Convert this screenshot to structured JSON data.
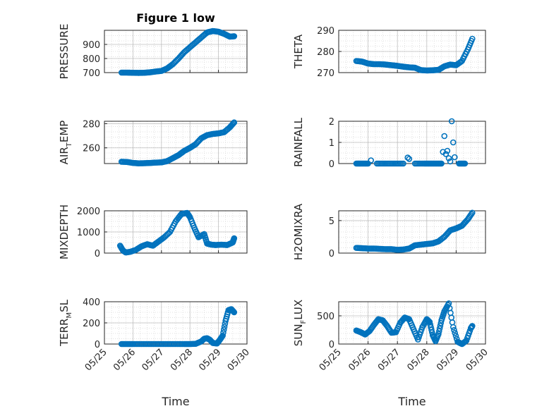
{
  "figure_title": "Figure 1 low",
  "colors": {
    "marker": "#0072BD",
    "axis": "#262626",
    "grid": "#b0b0b0",
    "background": "#ffffff"
  },
  "chart_data": [
    {
      "type": "scatter",
      "panel": "pressure",
      "title": "Figure 1 low",
      "ylabel": "PRESSURE",
      "xlabel": "",
      "ylim": [
        700,
        1000
      ],
      "yticks": [
        "700",
        "800",
        "900"
      ],
      "xlim": [
        "05/25",
        "05/30"
      ],
      "xtick_labels": [],
      "grid": true,
      "marker": "open-circle",
      "x": [
        25.6,
        25.8,
        26.0,
        26.2,
        26.4,
        26.6,
        26.8,
        27.0,
        27.2,
        27.4,
        27.6,
        27.8,
        28.0,
        28.2,
        28.4,
        28.6,
        28.8,
        29.0,
        29.2,
        29.4,
        29.55
      ],
      "y": [
        700,
        700,
        699,
        698,
        699,
        702,
        708,
        712,
        730,
        760,
        800,
        845,
        880,
        915,
        950,
        985,
        995,
        990,
        975,
        955,
        958
      ]
    },
    {
      "type": "scatter",
      "panel": "theta",
      "ylabel": "THETA",
      "xlabel": "",
      "ylim": [
        270,
        290
      ],
      "yticks": [
        "270",
        "280",
        "290"
      ],
      "xlim": [
        "05/25",
        "05/30"
      ],
      "xtick_labels": [],
      "grid": true,
      "marker": "open-circle",
      "x": [
        25.6,
        25.8,
        26.0,
        26.2,
        26.4,
        26.6,
        26.8,
        27.0,
        27.2,
        27.4,
        27.6,
        27.8,
        28.0,
        28.2,
        28.4,
        28.6,
        28.8,
        29.0,
        29.2,
        29.4,
        29.55
      ],
      "y": [
        275.5,
        275.2,
        274.3,
        274.0,
        274.0,
        273.8,
        273.5,
        273.2,
        272.8,
        272.5,
        272.3,
        271.2,
        271.0,
        271.1,
        271.3,
        273.0,
        273.8,
        273.5,
        275.5,
        281.0,
        286.0
      ]
    },
    {
      "type": "scatter",
      "panel": "air-temp",
      "ylabel": "AIR_TEMP",
      "ylabel_main": "AIR",
      "ylabel_sub": "T",
      "ylabel_tail": "EMP",
      "xlabel": "",
      "ylim": [
        247,
        282
      ],
      "yticks": [
        "260",
        "280"
      ],
      "xlim": [
        "05/25",
        "05/30"
      ],
      "xtick_labels": [],
      "grid": true,
      "marker": "open-circle",
      "x": [
        25.6,
        25.8,
        26.0,
        26.2,
        26.4,
        26.6,
        26.8,
        27.0,
        27.2,
        27.4,
        27.6,
        27.8,
        28.0,
        28.2,
        28.4,
        28.6,
        28.8,
        29.0,
        29.2,
        29.4,
        29.55
      ],
      "y": [
        248.5,
        248.3,
        247.5,
        247.2,
        247.3,
        247.5,
        247.8,
        248.0,
        249.0,
        251.5,
        254.0,
        257.5,
        260.0,
        263.0,
        268.0,
        270.5,
        271.5,
        272.0,
        273.0,
        277.0,
        281.0
      ]
    },
    {
      "type": "scatter",
      "panel": "rainfall",
      "ylabel": "RAINFALL",
      "xlabel": "",
      "ylim": [
        0,
        2
      ],
      "yticks": [
        "0",
        "1",
        "2"
      ],
      "xlim": [
        "05/25",
        "05/30"
      ],
      "xtick_labels": [],
      "grid": true,
      "marker": "open-circle",
      "x": [
        25.6,
        25.8,
        26.0,
        26.1,
        26.3,
        26.6,
        26.9,
        27.2,
        27.35,
        27.4,
        27.6,
        27.9,
        28.1,
        28.3,
        28.5,
        28.55,
        28.6,
        28.65,
        28.7,
        28.75,
        28.8,
        28.85,
        28.9,
        28.95,
        29.1,
        29.3
      ],
      "y": [
        0,
        0,
        0,
        0.15,
        0,
        0,
        0,
        0,
        0.28,
        0.22,
        0,
        0,
        0,
        0,
        0,
        0.55,
        1.3,
        0.45,
        0.6,
        0.25,
        0.1,
        2.0,
        1.0,
        0.3,
        0,
        0
      ]
    },
    {
      "type": "scatter",
      "panel": "mixdepth",
      "ylabel": "MIXDEPTH",
      "xlabel": "",
      "ylim": [
        0,
        2000
      ],
      "yticks": [
        "0",
        "1000",
        "2000"
      ],
      "xlim": [
        "05/25",
        "05/30"
      ],
      "xtick_labels": [],
      "grid": true,
      "marker": "open-circle",
      "x": [
        25.55,
        25.65,
        25.75,
        25.9,
        26.1,
        26.3,
        26.5,
        26.7,
        26.9,
        27.1,
        27.3,
        27.5,
        27.7,
        27.9,
        28.0,
        28.15,
        28.3,
        28.5,
        28.6,
        28.75,
        28.9,
        29.1,
        29.3,
        29.5,
        29.55
      ],
      "y": [
        350,
        120,
        30,
        60,
        150,
        320,
        420,
        350,
        550,
        750,
        1000,
        1500,
        1850,
        1900,
        1700,
        1200,
        750,
        900,
        450,
        400,
        380,
        400,
        380,
        500,
        700
      ]
    },
    {
      "type": "scatter",
      "panel": "h2o-mixing-ratio",
      "ylabel": "H2OMIXRA",
      "xlabel": "",
      "ylim": [
        0,
        6.5
      ],
      "yticks": [
        "0",
        "5"
      ],
      "xlim": [
        "05/25",
        "05/30"
      ],
      "xtick_labels": [],
      "grid": true,
      "marker": "open-circle",
      "x": [
        25.6,
        25.8,
        26.0,
        26.2,
        26.4,
        26.6,
        26.8,
        27.0,
        27.2,
        27.4,
        27.6,
        27.8,
        28.0,
        28.2,
        28.4,
        28.6,
        28.8,
        29.0,
        29.2,
        29.4,
        29.55
      ],
      "y": [
        0.8,
        0.75,
        0.7,
        0.7,
        0.65,
        0.6,
        0.6,
        0.5,
        0.55,
        0.7,
        1.2,
        1.3,
        1.4,
        1.5,
        1.8,
        2.5,
        3.5,
        3.8,
        4.2,
        5.2,
        6.2
      ]
    },
    {
      "type": "scatter",
      "panel": "terrain-msl",
      "ylabel": "TERR_MSL",
      "ylabel_main": "TERR",
      "ylabel_sub": "M",
      "ylabel_tail": "SL",
      "xlabel": "Time",
      "ylim": [
        0,
        400
      ],
      "yticks": [
        "0",
        "200",
        "400"
      ],
      "xlim": [
        "05/25",
        "05/30"
      ],
      "xtick_labels": [
        "05/25",
        "05/26",
        "05/27",
        "05/28",
        "05/29",
        "05/30"
      ],
      "grid": true,
      "marker": "open-circle",
      "x": [
        25.6,
        25.8,
        26.0,
        26.3,
        26.6,
        26.9,
        27.2,
        27.5,
        27.8,
        28.0,
        28.2,
        28.4,
        28.5,
        28.6,
        28.7,
        28.8,
        28.95,
        29.05,
        29.15,
        29.25,
        29.35,
        29.45,
        29.55
      ],
      "y": [
        0,
        0,
        0,
        0,
        0,
        0,
        0,
        0,
        0,
        0,
        2,
        25,
        50,
        55,
        40,
        10,
        5,
        40,
        80,
        220,
        320,
        330,
        300
      ]
    },
    {
      "type": "scatter",
      "panel": "sun-flux",
      "ylabel": "SUN_FLUX",
      "ylabel_main": "SUN",
      "ylabel_sub": "F",
      "ylabel_tail": "LUX",
      "xlabel": "Time",
      "ylim": [
        0,
        750
      ],
      "yticks": [
        "0",
        "500"
      ],
      "xlim": [
        "05/25",
        "05/30"
      ],
      "xtick_labels": [
        "05/25",
        "05/26",
        "05/27",
        "05/28",
        "05/29",
        "05/30"
      ],
      "grid": true,
      "marker": "open-circle",
      "x": [
        25.6,
        25.75,
        25.9,
        26.05,
        26.2,
        26.35,
        26.5,
        26.65,
        26.8,
        26.95,
        27.1,
        27.25,
        27.4,
        27.55,
        27.7,
        27.85,
        28.0,
        28.1,
        28.2,
        28.3,
        28.4,
        28.5,
        28.6,
        28.75,
        28.9,
        29.05,
        29.2,
        29.35,
        29.5,
        29.55
      ],
      "y": [
        240,
        210,
        170,
        230,
        340,
        440,
        420,
        320,
        200,
        210,
        380,
        470,
        440,
        260,
        80,
        300,
        440,
        390,
        160,
        50,
        180,
        420,
        580,
        720,
        300,
        40,
        0,
        60,
        280,
        320
      ]
    }
  ]
}
